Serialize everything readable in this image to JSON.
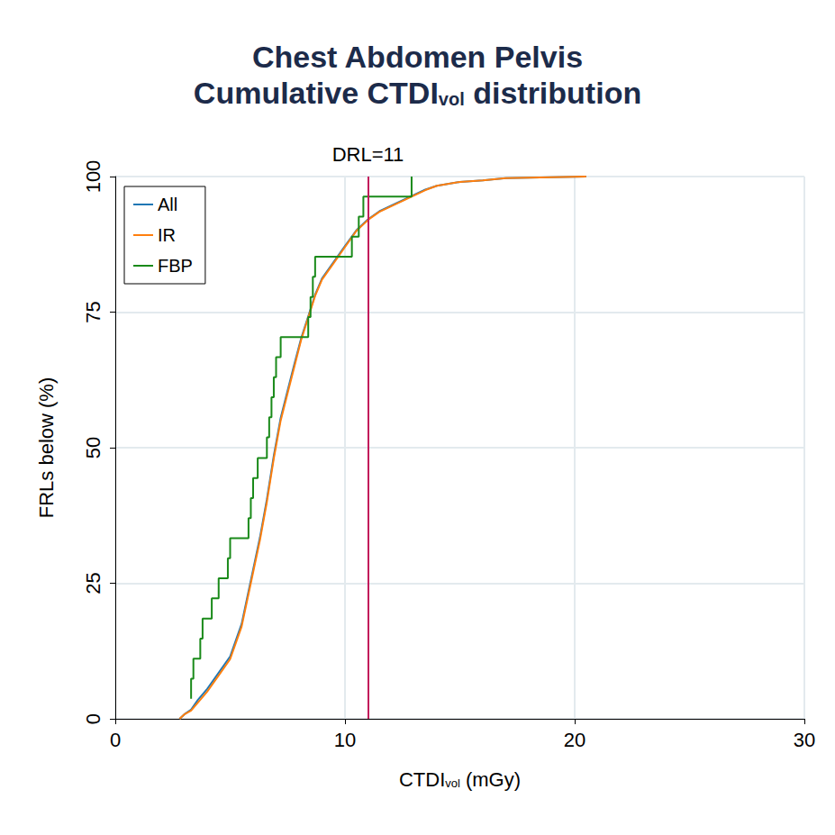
{
  "chart_data": {
    "type": "line",
    "title": "Chest Abdomen Pelvis\nCumulative CTDIvol distribution",
    "x_label": "CTDIvol (mGy)",
    "y_label": "FRLs below (%)",
    "xlim": [
      0,
      30
    ],
    "xticks": [
      0,
      10,
      20,
      30
    ],
    "ylim": [
      0,
      100
    ],
    "yticks": [
      0,
      25,
      50,
      75,
      100
    ],
    "grid": true,
    "legend": "upper left",
    "reference_line": {
      "x": 11,
      "label": "DRL=11",
      "color": "#c2185b"
    },
    "series": [
      {
        "name": "All",
        "color": "#1f77b4",
        "type": "line",
        "x": [
          2.8,
          3.0,
          3.3,
          3.6,
          4.0,
          4.5,
          5.0,
          5.5,
          5.8,
          6.0,
          6.3,
          6.6,
          6.9,
          7.2,
          7.5,
          7.8,
          8.1,
          8.4,
          8.7,
          9.0,
          9.5,
          10.0,
          10.5,
          11.0,
          11.5,
          12.0,
          12.5,
          13.0,
          13.5,
          14.0,
          15.0,
          16.0,
          17.0,
          18.0,
          20.5
        ],
        "values": [
          0,
          0.8,
          1.7,
          3.5,
          5.5,
          8.5,
          11.5,
          17.5,
          23.5,
          27.5,
          33.5,
          40.5,
          48.5,
          55.5,
          60.5,
          65.5,
          70.3,
          74.2,
          78.2,
          81.2,
          84.2,
          87.2,
          90.1,
          92.1,
          93.6,
          94.6,
          95.6,
          96.6,
          97.6,
          98.3,
          99,
          99.3,
          99.7,
          99.8,
          100
        ]
      },
      {
        "name": "IR",
        "color": "#ff7f0e",
        "type": "line",
        "x": [
          2.8,
          3.0,
          3.3,
          3.6,
          4.0,
          4.5,
          5.0,
          5.5,
          5.8,
          6.0,
          6.3,
          6.6,
          6.9,
          7.2,
          7.5,
          7.8,
          8.1,
          8.4,
          8.7,
          9.0,
          9.5,
          10.0,
          10.5,
          11.0,
          11.5,
          12.0,
          12.5,
          13.0,
          13.5,
          14.0,
          15.0,
          16.0,
          17.0,
          18.0,
          20.5
        ],
        "values": [
          0,
          0.8,
          1.5,
          3,
          5,
          8,
          11,
          17,
          23,
          27,
          33,
          40,
          48,
          55,
          60,
          65,
          70,
          74,
          78,
          81,
          84,
          87,
          90,
          92,
          93.5,
          94.5,
          95.5,
          96.5,
          97.5,
          98.3,
          99,
          99.3,
          99.7,
          99.8,
          100
        ]
      },
      {
        "name": "FBP",
        "color": "#1a8a1a",
        "type": "step",
        "x": [
          3.3,
          3.3,
          3.4,
          3.7,
          3.8,
          4.2,
          4.5,
          4.9,
          5.0,
          5.8,
          5.9,
          6.0,
          6.2,
          6.6,
          6.7,
          6.8,
          6.9,
          7.0,
          7.2,
          8.4,
          8.5,
          8.6,
          8.7,
          10.3,
          10.6,
          10.8,
          12.9
        ],
        "values": [
          3.7,
          7.4,
          11.1,
          14.8,
          18.5,
          22.2,
          25.9,
          29.6,
          33.3,
          37.0,
          40.7,
          44.4,
          48.1,
          51.9,
          55.6,
          59.3,
          63.0,
          66.7,
          70.4,
          74.1,
          77.8,
          81.5,
          85.2,
          88.9,
          92.6,
          96.3,
          100
        ]
      }
    ]
  }
}
